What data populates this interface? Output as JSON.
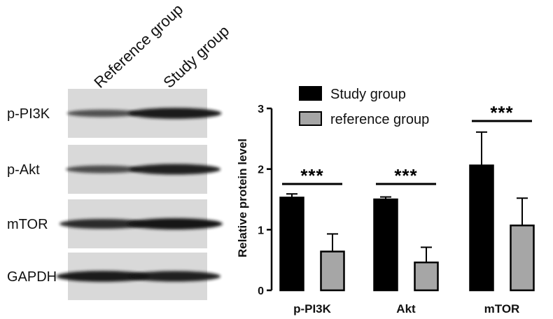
{
  "blot": {
    "lanes": [
      "Reference group",
      "Study group"
    ],
    "rows": [
      {
        "label": "p-PI3K",
        "reference_intensity": 0.45,
        "study_intensity": 0.95
      },
      {
        "label": "p-Akt",
        "reference_intensity": 0.5,
        "study_intensity": 0.9
      },
      {
        "label": "mTOR",
        "reference_intensity": 0.8,
        "study_intensity": 1.0
      },
      {
        "label": "GAPDH",
        "reference_intensity": 0.95,
        "study_intensity": 0.9
      }
    ],
    "colors": {
      "panel": "#d9d9d9",
      "band": "#141414"
    }
  },
  "chart_data": {
    "type": "bar",
    "categories": [
      "p-PI3K",
      "Akt",
      "mTOR"
    ],
    "series": [
      {
        "name": "Study group",
        "color": "#000000",
        "values": [
          1.53,
          1.5,
          2.06
        ],
        "errors": [
          0.06,
          0.04,
          0.55
        ]
      },
      {
        "name": "reference group",
        "color": "#a6a6a6",
        "values": [
          0.64,
          0.46,
          1.07
        ],
        "errors": [
          0.29,
          0.25,
          0.45
        ]
      }
    ],
    "significance": [
      "***",
      "***",
      "***"
    ],
    "title": "",
    "xlabel": "",
    "ylabel": "Relative protein level",
    "ylim": [
      0,
      3
    ],
    "yticks": [
      0,
      1,
      2,
      3
    ],
    "grid": false,
    "legend": "top"
  }
}
